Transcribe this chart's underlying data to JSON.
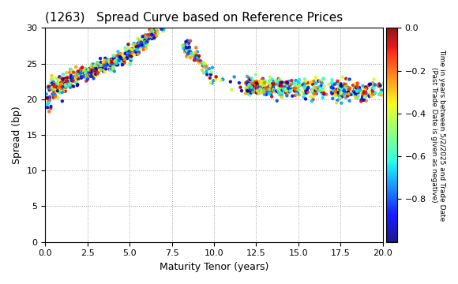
{
  "title": "(1263)   Spread Curve based on Reference Prices",
  "xlabel": "Maturity Tenor (years)",
  "ylabel": "Spread (bp)",
  "colorbar_label": "Time in years between 5/2/2025 and Trade Date\n(Past Trade Date is given as negative)",
  "xlim": [
    0.0,
    20.0
  ],
  "ylim": [
    0,
    30
  ],
  "xticks": [
    0.0,
    2.5,
    5.0,
    7.5,
    10.0,
    12.5,
    15.0,
    17.5,
    20.0
  ],
  "yticks": [
    0,
    5,
    10,
    15,
    20,
    25,
    30
  ],
  "cbar_ticks": [
    0.0,
    -0.2,
    -0.4,
    -0.6,
    -0.8
  ],
  "vmin": -1.0,
  "vmax": 0.0,
  "background_color": "#ffffff",
  "grid_color": "#888888",
  "marker_size": 10
}
